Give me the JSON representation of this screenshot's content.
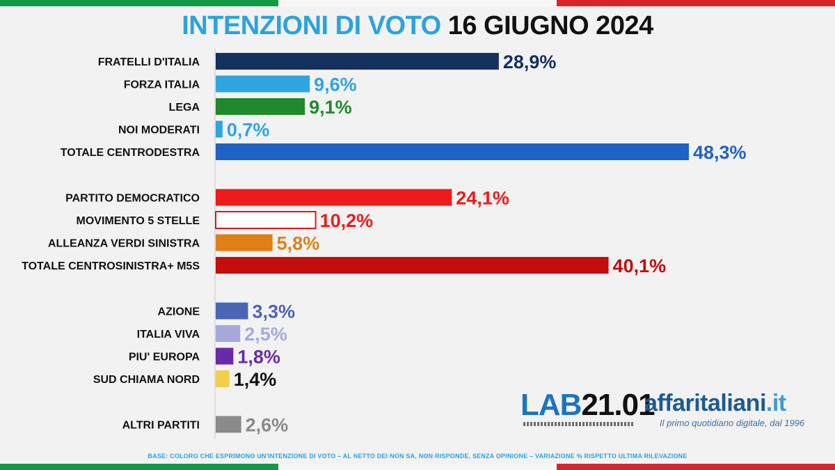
{
  "title": {
    "part1": "INTENZIONI DI VOTO",
    "part2": "16 GIUGNO 2024"
  },
  "chart_data": {
    "type": "bar",
    "orientation": "horizontal",
    "categories": [
      "FRATELLI D'ITALIA",
      "FORZA ITALIA",
      "LEGA",
      "NOI MODERATI",
      "TOTALE CENTRODESTRA",
      "PARTITO DEMOCRATICO",
      "MOVIMENTO 5 STELLE",
      "ALLEANZA VERDI SINISTRA",
      "TOTALE CENTROSINISTRA+ M5S",
      "AZIONE",
      "ITALIA VIVA",
      "PIU' EUROPA",
      "SUD CHIAMA NORD",
      "ALTRI PARTITI"
    ],
    "values": [
      28.9,
      9.6,
      9.1,
      0.7,
      48.3,
      24.1,
      10.2,
      5.8,
      40.1,
      3.3,
      2.5,
      1.8,
      1.4,
      2.6
    ],
    "value_labels": [
      "28,9%",
      "9,6%",
      "9,1%",
      "0,7%",
      "48,3%",
      "24,1%",
      "10,2%",
      "5,8%",
      "40,1%",
      "3,3%",
      "2,5%",
      "1,8%",
      "1,4%",
      "2,6%"
    ],
    "colors": [
      "#16305e",
      "#2fa5e0",
      "#1e8a2c",
      "#2fa5e0",
      "#1f62c4",
      "#ef1a1a",
      "#ffffff",
      "#e07f16",
      "#c40d0d",
      "#4b65b5",
      "#a7a9dd",
      "#6a2aa8",
      "#f2cf4a",
      "#8a8a8a"
    ],
    "label_colors": [
      "#16305e",
      "#2fa5e0",
      "#1e8a2c",
      "#2fa5e0",
      "#1f62c4",
      "#ef1a1a",
      "#ef1a1a",
      "#e07f16",
      "#c40d0d",
      "#4b65b5",
      "#a7a9dd",
      "#6a2aa8",
      "#111111",
      "#8a8a8a"
    ],
    "outline": [
      false,
      false,
      false,
      false,
      false,
      false,
      true,
      false,
      false,
      false,
      false,
      false,
      false,
      false
    ],
    "groups": [
      [
        0,
        4
      ],
      [
        5,
        8
      ],
      [
        9,
        12
      ],
      [
        13,
        13
      ]
    ],
    "xlim": [
      0,
      48.3
    ],
    "grid": false,
    "title": "INTENZIONI DI VOTO 16 GIUGNO 2024",
    "xlabel": "",
    "ylabel": ""
  },
  "logos": {
    "lab_part1": "LAB",
    "lab_part2": "21.01",
    "affari_name": "affaritaliani",
    "affari_tld": ".it",
    "affari_tagline": "Il primo quotidiano digitale, dal 1996"
  },
  "footnote": "BASE: COLORO CHE ESPRIMONO UN'INTENZIONE DI VOTO – AL NETTO DEI NON SA, NON RISPONDE, SENZA OPINIONE – VARIAZIONE % RISPETTO ULTIMA RILEVAZIONE"
}
